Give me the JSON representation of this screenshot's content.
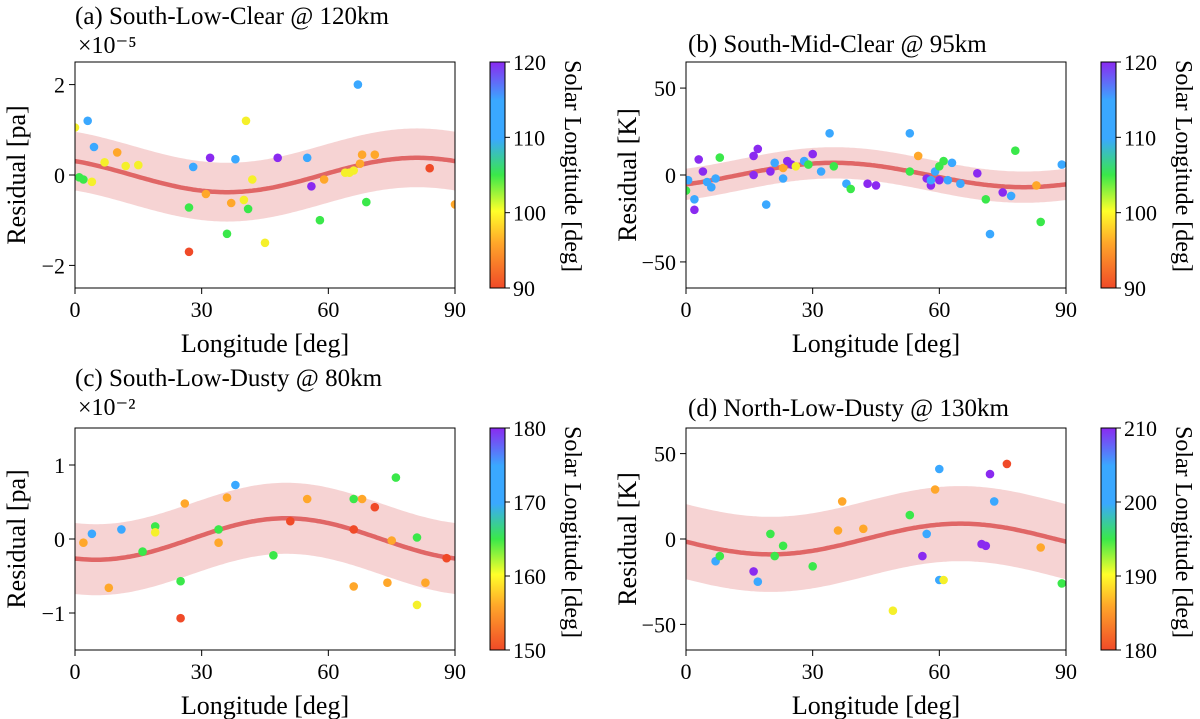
{
  "chart_data": [
    {
      "type": "scatter",
      "title": "(a) South-Low-Clear @ 120km",
      "xlabel": "Longitude [deg]",
      "ylabel": "Residual [pa]",
      "scale_label": "×10⁻⁵",
      "xlim": [
        0,
        90
      ],
      "ylim": [
        -2.5,
        2.5
      ],
      "xticks": [
        0,
        30,
        60,
        90
      ],
      "yticks": [
        -2,
        0,
        2
      ],
      "colorbar": {
        "label": "Solar Longitude [deg]",
        "range": [
          90,
          120
        ],
        "ticks": [
          90,
          100,
          110,
          120
        ]
      },
      "fit": {
        "name": "Sinusoidal fit",
        "amplitude": 0.38,
        "phase_deg": 81,
        "band_halfwidth": 0.65,
        "offset": 0
      },
      "points": [
        {
          "x": 0,
          "y": 1.05,
          "c": 100
        },
        {
          "x": 1,
          "y": -0.05,
          "c": 110
        },
        {
          "x": 2,
          "y": -0.1,
          "c": 110
        },
        {
          "x": 3,
          "y": 1.2,
          "c": 113
        },
        {
          "x": 4,
          "y": -0.15,
          "c": 100
        },
        {
          "x": 4.5,
          "y": 0.62,
          "c": 115
        },
        {
          "x": 7,
          "y": 0.28,
          "c": 100
        },
        {
          "x": 10,
          "y": 0.5,
          "c": 97
        },
        {
          "x": 12,
          "y": 0.2,
          "c": 100
        },
        {
          "x": 15,
          "y": 0.22,
          "c": 100
        },
        {
          "x": 27,
          "y": -1.7,
          "c": 92
        },
        {
          "x": 27,
          "y": -0.72,
          "c": 110
        },
        {
          "x": 28,
          "y": 0.18,
          "c": 115
        },
        {
          "x": 31,
          "y": -0.42,
          "c": 97
        },
        {
          "x": 32,
          "y": 0.38,
          "c": 118
        },
        {
          "x": 36,
          "y": -1.3,
          "c": 110
        },
        {
          "x": 37,
          "y": -0.62,
          "c": 97
        },
        {
          "x": 38,
          "y": 0.35,
          "c": 115
        },
        {
          "x": 40,
          "y": -0.55,
          "c": 100
        },
        {
          "x": 40.5,
          "y": 1.2,
          "c": 103
        },
        {
          "x": 41,
          "y": -0.75,
          "c": 110
        },
        {
          "x": 42,
          "y": -0.1,
          "c": 100
        },
        {
          "x": 45,
          "y": -1.5,
          "c": 103
        },
        {
          "x": 48,
          "y": 0.38,
          "c": 118
        },
        {
          "x": 55,
          "y": 0.38,
          "c": 115
        },
        {
          "x": 56,
          "y": -0.25,
          "c": 118
        },
        {
          "x": 58,
          "y": -1.0,
          "c": 110
        },
        {
          "x": 59,
          "y": -0.1,
          "c": 97
        },
        {
          "x": 64,
          "y": 0.05,
          "c": 100
        },
        {
          "x": 65,
          "y": 0.05,
          "c": 100
        },
        {
          "x": 66,
          "y": 0.1,
          "c": 100
        },
        {
          "x": 67,
          "y": 2.0,
          "c": 115
        },
        {
          "x": 67.5,
          "y": 0.25,
          "c": 97
        },
        {
          "x": 68,
          "y": 0.45,
          "c": 97
        },
        {
          "x": 69,
          "y": -0.6,
          "c": 110
        },
        {
          "x": 71,
          "y": 0.45,
          "c": 97
        },
        {
          "x": 84,
          "y": 0.15,
          "c": 92
        },
        {
          "x": 90,
          "y": -0.65,
          "c": 97
        }
      ]
    },
    {
      "type": "scatter",
      "title": "(b) South-Mid-Clear @ 95km",
      "xlabel": "Longitude [deg]",
      "ylabel": "Residual [K]",
      "scale_label": "",
      "xlim": [
        0,
        90
      ],
      "ylim": [
        -65,
        65
      ],
      "xticks": [
        0,
        30,
        60,
        90
      ],
      "yticks": [
        -50,
        0,
        50
      ],
      "colorbar": {
        "label": "Solar Longitude [deg]",
        "range": [
          90,
          120
        ],
        "ticks": [
          90,
          100,
          110,
          120
        ]
      },
      "fit": {
        "name": "Sinusoidal fit",
        "amplitude": 7,
        "phase_deg": 35,
        "band_halfwidth": 9,
        "offset": 0
      },
      "points": [
        {
          "x": 0,
          "y": -9,
          "c": 110
        },
        {
          "x": 0.5,
          "y": -3,
          "c": 115
        },
        {
          "x": 2,
          "y": -20,
          "c": 118
        },
        {
          "x": 2,
          "y": -14,
          "c": 115
        },
        {
          "x": 3,
          "y": 9,
          "c": 118
        },
        {
          "x": 4,
          "y": 2,
          "c": 118
        },
        {
          "x": 5,
          "y": -4,
          "c": 115
        },
        {
          "x": 6,
          "y": -7,
          "c": 115
        },
        {
          "x": 7,
          "y": -2,
          "c": 115
        },
        {
          "x": 8,
          "y": 10,
          "c": 110
        },
        {
          "x": 16,
          "y": 11,
          "c": 118
        },
        {
          "x": 16,
          "y": 0,
          "c": 118
        },
        {
          "x": 17,
          "y": 15,
          "c": 118
        },
        {
          "x": 19,
          "y": -17,
          "c": 115
        },
        {
          "x": 20,
          "y": 2,
          "c": 118
        },
        {
          "x": 21,
          "y": 7,
          "c": 115
        },
        {
          "x": 23,
          "y": 4,
          "c": 97
        },
        {
          "x": 23,
          "y": -2,
          "c": 115
        },
        {
          "x": 24,
          "y": 8,
          "c": 118
        },
        {
          "x": 25,
          "y": 6,
          "c": 118
        },
        {
          "x": 26,
          "y": 5,
          "c": 100
        },
        {
          "x": 28,
          "y": 8,
          "c": 115
        },
        {
          "x": 29,
          "y": 6,
          "c": 110
        },
        {
          "x": 30,
          "y": 12,
          "c": 118
        },
        {
          "x": 32,
          "y": 2,
          "c": 115
        },
        {
          "x": 34,
          "y": 24,
          "c": 115
        },
        {
          "x": 35,
          "y": 5,
          "c": 110
        },
        {
          "x": 38,
          "y": -5,
          "c": 115
        },
        {
          "x": 39,
          "y": -8,
          "c": 110
        },
        {
          "x": 43,
          "y": -5,
          "c": 118
        },
        {
          "x": 45,
          "y": -6,
          "c": 118
        },
        {
          "x": 53,
          "y": 24,
          "c": 115
        },
        {
          "x": 53,
          "y": 2,
          "c": 110
        },
        {
          "x": 55,
          "y": 11,
          "c": 97
        },
        {
          "x": 57,
          "y": -2,
          "c": 118
        },
        {
          "x": 58,
          "y": -6,
          "c": 118
        },
        {
          "x": 58,
          "y": -3,
          "c": 115
        },
        {
          "x": 59,
          "y": 2,
          "c": 115
        },
        {
          "x": 60,
          "y": 5,
          "c": 110
        },
        {
          "x": 60,
          "y": -3,
          "c": 118
        },
        {
          "x": 61,
          "y": 8,
          "c": 110
        },
        {
          "x": 62,
          "y": -3,
          "c": 115
        },
        {
          "x": 63,
          "y": 7,
          "c": 115
        },
        {
          "x": 65,
          "y": -5,
          "c": 115
        },
        {
          "x": 69,
          "y": 1,
          "c": 118
        },
        {
          "x": 71,
          "y": -14,
          "c": 110
        },
        {
          "x": 72,
          "y": -34,
          "c": 115
        },
        {
          "x": 75,
          "y": -10,
          "c": 118
        },
        {
          "x": 77,
          "y": -12,
          "c": 115
        },
        {
          "x": 78,
          "y": 14,
          "c": 110
        },
        {
          "x": 83,
          "y": -6,
          "c": 97
        },
        {
          "x": 84,
          "y": -27,
          "c": 110
        },
        {
          "x": 89,
          "y": 6,
          "c": 115
        }
      ]
    },
    {
      "type": "scatter",
      "title": "(c) South-Low-Dusty @ 80km",
      "xlabel": "Longitude [deg]",
      "ylabel": "Residual [pa]",
      "scale_label": "×10⁻²",
      "xlim": [
        0,
        90
      ],
      "ylim": [
        -1.5,
        1.5
      ],
      "xticks": [
        0,
        30,
        60,
        90
      ],
      "yticks": [
        -1,
        0,
        1
      ],
      "colorbar": {
        "label": "Solar Longitude [deg]",
        "range": [
          150,
          180
        ],
        "ticks": [
          150,
          160,
          170,
          180
        ]
      },
      "fit": {
        "name": "Sinusoidal fit",
        "amplitude": 0.28,
        "phase_deg": 50,
        "band_halfwidth": 0.48,
        "offset": 0
      },
      "points": [
        {
          "x": 2,
          "y": -0.05,
          "c": 157
        },
        {
          "x": 4,
          "y": 0.07,
          "c": 173
        },
        {
          "x": 8,
          "y": -0.66,
          "c": 157
        },
        {
          "x": 11,
          "y": 0.13,
          "c": 173
        },
        {
          "x": 16,
          "y": -0.17,
          "c": 167
        },
        {
          "x": 19,
          "y": 0.17,
          "c": 167
        },
        {
          "x": 19,
          "y": 0.09,
          "c": 163
        },
        {
          "x": 25,
          "y": -1.07,
          "c": 152
        },
        {
          "x": 25,
          "y": -0.57,
          "c": 167
        },
        {
          "x": 26,
          "y": 0.48,
          "c": 157
        },
        {
          "x": 34,
          "y": 0.13,
          "c": 167
        },
        {
          "x": 34,
          "y": -0.05,
          "c": 157
        },
        {
          "x": 36,
          "y": 0.56,
          "c": 157
        },
        {
          "x": 38,
          "y": 0.73,
          "c": 173
        },
        {
          "x": 47,
          "y": -0.22,
          "c": 167
        },
        {
          "x": 51,
          "y": 0.24,
          "c": 152
        },
        {
          "x": 55,
          "y": 0.54,
          "c": 157
        },
        {
          "x": 66,
          "y": 0.54,
          "c": 167
        },
        {
          "x": 66,
          "y": 0.13,
          "c": 152
        },
        {
          "x": 66,
          "y": -0.64,
          "c": 157
        },
        {
          "x": 68,
          "y": 0.54,
          "c": 157
        },
        {
          "x": 71,
          "y": 0.43,
          "c": 152
        },
        {
          "x": 74,
          "y": -0.59,
          "c": 157
        },
        {
          "x": 75,
          "y": -0.02,
          "c": 157
        },
        {
          "x": 76,
          "y": 0.83,
          "c": 167
        },
        {
          "x": 81,
          "y": 0.02,
          "c": 167
        },
        {
          "x": 81,
          "y": -0.89,
          "c": 163
        },
        {
          "x": 83,
          "y": -0.59,
          "c": 157
        },
        {
          "x": 88,
          "y": -0.26,
          "c": 152
        }
      ]
    },
    {
      "type": "scatter",
      "title": "(d) North-Low-Dusty @ 130km",
      "xlabel": "Longitude [deg]",
      "ylabel": "Residual [K]",
      "scale_label": "",
      "xlim": [
        0,
        90
      ],
      "ylim": [
        -65,
        65
      ],
      "xticks": [
        0,
        30,
        60,
        90
      ],
      "yticks": [
        -50,
        0,
        50
      ],
      "colorbar": {
        "label": "Solar Longitude [deg]",
        "range": [
          180,
          210
        ],
        "ticks": [
          180,
          190,
          200,
          210
        ]
      },
      "fit": {
        "name": "Sinusoidal fit",
        "amplitude": 9,
        "phase_deg": 65,
        "band_halfwidth": 22,
        "offset": 0
      },
      "points": [
        {
          "x": 7,
          "y": -13,
          "c": 203
        },
        {
          "x": 8,
          "y": -10,
          "c": 197
        },
        {
          "x": 16,
          "y": -19,
          "c": 207
        },
        {
          "x": 17,
          "y": -25,
          "c": 203
        },
        {
          "x": 20,
          "y": 3,
          "c": 197
        },
        {
          "x": 21,
          "y": -10,
          "c": 197
        },
        {
          "x": 23,
          "y": -4,
          "c": 197
        },
        {
          "x": 30,
          "y": -16,
          "c": 197
        },
        {
          "x": 36,
          "y": 5,
          "c": 187
        },
        {
          "x": 37,
          "y": 22,
          "c": 187
        },
        {
          "x": 42,
          "y": 6,
          "c": 187
        },
        {
          "x": 49,
          "y": -42,
          "c": 190
        },
        {
          "x": 53,
          "y": 14,
          "c": 197
        },
        {
          "x": 56,
          "y": -10,
          "c": 207
        },
        {
          "x": 57,
          "y": 3,
          "c": 203
        },
        {
          "x": 59,
          "y": 29,
          "c": 187
        },
        {
          "x": 60,
          "y": -24,
          "c": 203
        },
        {
          "x": 60,
          "y": 41,
          "c": 203
        },
        {
          "x": 61,
          "y": -24,
          "c": 190
        },
        {
          "x": 70,
          "y": -3,
          "c": 207
        },
        {
          "x": 71,
          "y": -4,
          "c": 207
        },
        {
          "x": 72,
          "y": 38,
          "c": 207
        },
        {
          "x": 73,
          "y": 22,
          "c": 203
        },
        {
          "x": 76,
          "y": 44,
          "c": 182
        },
        {
          "x": 84,
          "y": -5,
          "c": 187
        },
        {
          "x": 89,
          "y": -26,
          "c": 197
        }
      ]
    }
  ]
}
